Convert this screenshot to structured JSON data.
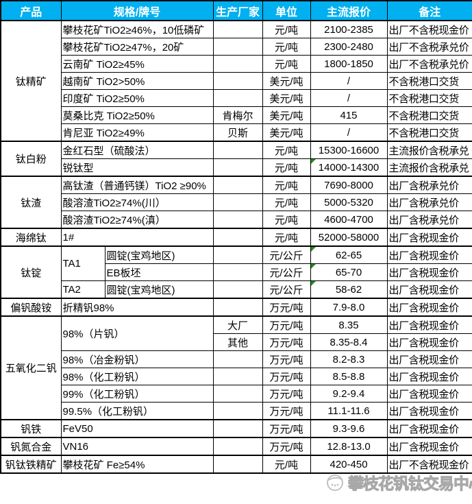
{
  "header": {
    "columns": [
      {
        "label": "产品",
        "cs": 1,
        "name": "product"
      },
      {
        "label": "规格/牌号",
        "cs": 2,
        "name": "spec"
      },
      {
        "label": "生产厂家",
        "cs": 1,
        "name": "manufacturer"
      },
      {
        "label": "单位",
        "cs": 1,
        "name": "unit"
      },
      {
        "label": "主流报价",
        "cs": 1,
        "name": "price"
      },
      {
        "label": "备注",
        "cs": 1,
        "name": "remark"
      }
    ]
  },
  "table": {
    "rows": [
      {
        "grp": true,
        "cells": [
          {
            "k": "product",
            "t": "钛精矿",
            "rs": 7
          },
          {
            "k": "spec",
            "t": "攀枝花矿TiO2≥46%，10低磷矿",
            "cs": 2
          },
          {
            "k": "mfr",
            "t": ""
          },
          {
            "k": "unit",
            "t": "元/吨"
          },
          {
            "k": "price",
            "t": "2100-2385"
          },
          {
            "k": "remark",
            "t": "出厂不含税现金价"
          }
        ]
      },
      {
        "cells": [
          {
            "k": "spec",
            "t": "攀枝花矿TiO2≥47%，20矿",
            "cs": 2
          },
          {
            "k": "mfr",
            "t": ""
          },
          {
            "k": "unit",
            "t": "元/吨"
          },
          {
            "k": "price",
            "t": "2300-2480"
          },
          {
            "k": "remark",
            "t": "出厂不含税承兑价"
          }
        ]
      },
      {
        "cells": [
          {
            "k": "spec",
            "t": "云南矿 TiO2≥45%",
            "cs": 2
          },
          {
            "k": "mfr",
            "t": ""
          },
          {
            "k": "unit",
            "t": "元/吨"
          },
          {
            "k": "price",
            "t": "1800-1850"
          },
          {
            "k": "remark",
            "t": "出厂不含税承兑价"
          }
        ]
      },
      {
        "cells": [
          {
            "k": "spec",
            "t": "越南矿 TiO2>50%",
            "cs": 2
          },
          {
            "k": "mfr",
            "t": ""
          },
          {
            "k": "unit",
            "t": "美元/吨"
          },
          {
            "k": "price",
            "t": "/"
          },
          {
            "k": "remark",
            "t": "不含税港口交货"
          }
        ]
      },
      {
        "cells": [
          {
            "k": "spec",
            "t": "印度矿 TiO2≥50%",
            "cs": 2
          },
          {
            "k": "mfr",
            "t": ""
          },
          {
            "k": "unit",
            "t": "美元/吨"
          },
          {
            "k": "price",
            "t": "/"
          },
          {
            "k": "remark",
            "t": "不含税港口交货"
          }
        ]
      },
      {
        "cells": [
          {
            "k": "spec",
            "t": "莫桑比克 TiO2≥50%",
            "cs": 2
          },
          {
            "k": "mfr",
            "t": "肯梅尔"
          },
          {
            "k": "unit",
            "t": "美元/吨"
          },
          {
            "k": "price",
            "t": "415"
          },
          {
            "k": "remark",
            "t": "不含税港口交货"
          }
        ]
      },
      {
        "cells": [
          {
            "k": "spec",
            "t": "肯尼亚 TiO2≥49%",
            "cs": 2
          },
          {
            "k": "mfr",
            "t": "贝斯"
          },
          {
            "k": "unit",
            "t": "美元/吨"
          },
          {
            "k": "price",
            "t": "/"
          },
          {
            "k": "remark",
            "t": "不含税港口交货"
          }
        ]
      },
      {
        "grp": true,
        "cells": [
          {
            "k": "product",
            "t": "钛白粉",
            "rs": 2
          },
          {
            "k": "spec",
            "t": "金红石型（硫酸法）",
            "cs": 2
          },
          {
            "k": "mfr",
            "t": ""
          },
          {
            "k": "unit",
            "t": "元/吨"
          },
          {
            "k": "price",
            "t": "15300-16600"
          },
          {
            "k": "remark",
            "t": "主流报价含税承兑"
          }
        ]
      },
      {
        "cells": [
          {
            "k": "spec",
            "t": "锐钛型",
            "cs": 2
          },
          {
            "k": "mfr",
            "t": ""
          },
          {
            "k": "unit",
            "t": "元/吨"
          },
          {
            "k": "price",
            "t": "14000-14300",
            "green": true
          },
          {
            "k": "remark",
            "t": "主流报价含税承兑"
          }
        ]
      },
      {
        "grp": true,
        "cells": [
          {
            "k": "product",
            "t": "钛渣",
            "rs": 3
          },
          {
            "k": "spec",
            "t": "高钛渣（普通钙镁）TiO2 ≥90%",
            "cs": 2,
            "sm": true
          },
          {
            "k": "mfr",
            "t": ""
          },
          {
            "k": "unit",
            "t": "元/吨"
          },
          {
            "k": "price",
            "t": "7690-8000"
          },
          {
            "k": "remark",
            "t": "出厂含税承兑价"
          }
        ]
      },
      {
        "cells": [
          {
            "k": "spec",
            "t": "酸溶渣TiO2≥74%(川）",
            "cs": 2
          },
          {
            "k": "mfr",
            "t": ""
          },
          {
            "k": "unit",
            "t": "元/吨"
          },
          {
            "k": "price",
            "t": "5000-5320"
          },
          {
            "k": "remark",
            "t": "出厂含税承兑价"
          }
        ]
      },
      {
        "cells": [
          {
            "k": "spec",
            "t": "酸溶渣TiO2≥74%(滇）",
            "cs": 2
          },
          {
            "k": "mfr",
            "t": ""
          },
          {
            "k": "unit",
            "t": "元/吨"
          },
          {
            "k": "price",
            "t": "4600-4700"
          },
          {
            "k": "remark",
            "t": "出厂含税承兑价"
          }
        ]
      },
      {
        "grp": true,
        "cells": [
          {
            "k": "product",
            "t": "海绵钛"
          },
          {
            "k": "spec",
            "t": "1#",
            "cs": 2
          },
          {
            "k": "mfr",
            "t": ""
          },
          {
            "k": "unit",
            "t": "元/吨"
          },
          {
            "k": "price",
            "t": "52000-58000"
          },
          {
            "k": "remark",
            "t": "出厂含税现金价"
          }
        ]
      },
      {
        "grp": true,
        "cells": [
          {
            "k": "product",
            "t": "钛锭",
            "rs": 3
          },
          {
            "k": "speca",
            "t": "TA1",
            "rs": 2
          },
          {
            "k": "specb",
            "t": "圆锭(宝鸡地区)"
          },
          {
            "k": "mfr",
            "t": ""
          },
          {
            "k": "unit",
            "t": "元/公斤"
          },
          {
            "k": "price",
            "t": "62-65",
            "green": true
          },
          {
            "k": "remark",
            "t": "出厂含税现金价"
          }
        ]
      },
      {
        "cells": [
          {
            "k": "specb",
            "t": "EB板坯"
          },
          {
            "k": "mfr",
            "t": ""
          },
          {
            "k": "unit",
            "t": "元/公斤"
          },
          {
            "k": "price",
            "t": "65-70",
            "green": true
          },
          {
            "k": "remark",
            "t": "出厂含税现金价"
          }
        ]
      },
      {
        "cells": [
          {
            "k": "speca",
            "t": "TA2"
          },
          {
            "k": "specb",
            "t": "圆锭(宝鸡地区)"
          },
          {
            "k": "mfr",
            "t": ""
          },
          {
            "k": "unit",
            "t": "元/公斤"
          },
          {
            "k": "price",
            "t": "58-62",
            "green": true
          },
          {
            "k": "remark",
            "t": "出厂含税现金价"
          }
        ]
      },
      {
        "grp": true,
        "cells": [
          {
            "k": "product",
            "t": "偏钒酸铵"
          },
          {
            "k": "spec",
            "t": "折精钒98%",
            "cs": 2
          },
          {
            "k": "mfr",
            "t": ""
          },
          {
            "k": "unit",
            "t": "万元/吨"
          },
          {
            "k": "price",
            "t": "7.9-8.0"
          },
          {
            "k": "remark",
            "t": "出厂含税现金价"
          }
        ]
      },
      {
        "grp": true,
        "cells": [
          {
            "k": "product",
            "t": "五氧化二钒",
            "rs": 6
          },
          {
            "k": "spec",
            "t": "98%（片钒）",
            "cs": 2,
            "rs": 2
          },
          {
            "k": "mfr",
            "t": "大厂"
          },
          {
            "k": "unit",
            "t": "万元/吨"
          },
          {
            "k": "price",
            "t": "8.35"
          },
          {
            "k": "remark",
            "t": "出厂含税现金价"
          }
        ]
      },
      {
        "cells": [
          {
            "k": "mfr",
            "t": "其他"
          },
          {
            "k": "unit",
            "t": "万元/吨"
          },
          {
            "k": "price",
            "t": "8.35-8.4"
          },
          {
            "k": "remark",
            "t": "出厂含税现金价"
          }
        ]
      },
      {
        "cells": [
          {
            "k": "spec",
            "t": "98%（冶金粉钒）",
            "cs": 2
          },
          {
            "k": "mfr",
            "t": ""
          },
          {
            "k": "unit",
            "t": "万元/吨"
          },
          {
            "k": "price",
            "t": "8.2-8.3"
          },
          {
            "k": "remark",
            "t": "出厂含税现金价"
          }
        ]
      },
      {
        "cells": [
          {
            "k": "spec",
            "t": "98%（化工粉钒）",
            "cs": 2
          },
          {
            "k": "mfr",
            "t": ""
          },
          {
            "k": "unit",
            "t": "万元/吨"
          },
          {
            "k": "price",
            "t": "8.5-8.8"
          },
          {
            "k": "remark",
            "t": "出厂含税现金价"
          }
        ]
      },
      {
        "cells": [
          {
            "k": "spec",
            "t": "99%（化工粉钒）",
            "cs": 2
          },
          {
            "k": "mfr",
            "t": ""
          },
          {
            "k": "unit",
            "t": "万元/吨"
          },
          {
            "k": "price",
            "t": "9.2-9.4"
          },
          {
            "k": "remark",
            "t": "出厂含税现金价"
          }
        ]
      },
      {
        "cells": [
          {
            "k": "spec",
            "t": "99.5%（化工粉钒）",
            "cs": 2
          },
          {
            "k": "mfr",
            "t": ""
          },
          {
            "k": "unit",
            "t": "万元/吨"
          },
          {
            "k": "price",
            "t": "11.1-11.6"
          },
          {
            "k": "remark",
            "t": "出厂含税现金价"
          }
        ]
      },
      {
        "grp": true,
        "cells": [
          {
            "k": "product",
            "t": "钒铁"
          },
          {
            "k": "spec",
            "t": "FeV50",
            "cs": 2
          },
          {
            "k": "mfr",
            "t": ""
          },
          {
            "k": "unit",
            "t": "万元/吨"
          },
          {
            "k": "price",
            "t": "9.3-9.6"
          },
          {
            "k": "remark",
            "t": "出厂含税现金价"
          }
        ]
      },
      {
        "grp": true,
        "cells": [
          {
            "k": "product",
            "t": "钒氮合金"
          },
          {
            "k": "spec",
            "t": "VN16",
            "cs": 2
          },
          {
            "k": "mfr",
            "t": ""
          },
          {
            "k": "unit",
            "t": "万元/吨"
          },
          {
            "k": "price",
            "t": "12.8-13.0"
          },
          {
            "k": "remark",
            "t": "出厂含税现金价"
          }
        ]
      },
      {
        "grp": true,
        "cells": [
          {
            "k": "product",
            "t": "钒钛铁精矿"
          },
          {
            "k": "spec",
            "t": "攀枝花矿 Fe≥54%",
            "cs": 2
          },
          {
            "k": "mfr",
            "t": ""
          },
          {
            "k": "unit",
            "t": "元/吨"
          },
          {
            "k": "price",
            "t": "420-450"
          },
          {
            "k": "remark",
            "t": "出厂不含税现金价"
          }
        ]
      }
    ]
  },
  "watermark": {
    "text": "攀枝花钒钛交易中心"
  },
  "colors": {
    "header_bg": "#00B0F0",
    "header_text": "#FFFFFF",
    "border": "#000000",
    "comment_marker_green": "#1E8F1E",
    "watermark_gray": "#A8A8A8"
  }
}
